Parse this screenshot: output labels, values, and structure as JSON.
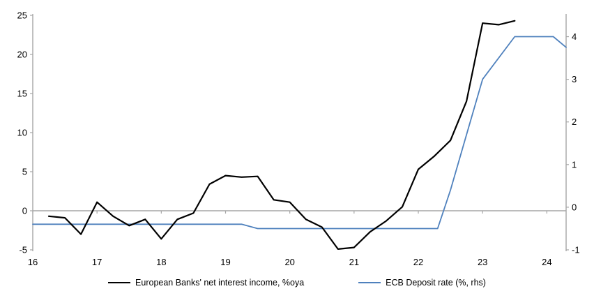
{
  "chart_data": {
    "type": "line",
    "title": "",
    "x_axis": {
      "min": 16,
      "max": 24.3,
      "ticks": [
        16,
        17,
        18,
        19,
        20,
        21,
        22,
        23,
        24
      ]
    },
    "left_axis": {
      "label": "",
      "min": -5,
      "max": 25,
      "ticks": [
        25,
        20,
        15,
        10,
        5,
        0,
        -5
      ]
    },
    "right_axis": {
      "label": "",
      "min": -1,
      "max": 4.5,
      "ticks": [
        4,
        3,
        2,
        1,
        0,
        -1
      ]
    },
    "grid": "zero-line-only",
    "legend_position": "bottom",
    "colors": {
      "axis_gray": "#a6a6a6",
      "zero_line": "#a6a6a6",
      "text": "#000000"
    },
    "series": [
      {
        "name": "European Banks' net interest income, %oya",
        "axis": "left",
        "color": "#000000",
        "width": 2.2,
        "points": [
          [
            16.25,
            -0.7
          ],
          [
            16.5,
            -0.9
          ],
          [
            16.75,
            -3.0
          ],
          [
            17.0,
            1.1
          ],
          [
            17.25,
            -0.7
          ],
          [
            17.5,
            -1.9
          ],
          [
            17.75,
            -1.1
          ],
          [
            18.0,
            -3.6
          ],
          [
            18.25,
            -1.1
          ],
          [
            18.5,
            -0.3
          ],
          [
            18.75,
            3.4
          ],
          [
            19.0,
            4.5
          ],
          [
            19.25,
            4.3
          ],
          [
            19.5,
            4.4
          ],
          [
            19.75,
            1.4
          ],
          [
            20.0,
            1.1
          ],
          [
            20.25,
            -1.1
          ],
          [
            20.5,
            -2.1
          ],
          [
            20.75,
            -4.9
          ],
          [
            21.0,
            -4.7
          ],
          [
            21.25,
            -2.7
          ],
          [
            21.5,
            -1.3
          ],
          [
            21.75,
            0.5
          ],
          [
            22.0,
            5.3
          ],
          [
            22.25,
            7.0
          ],
          [
            22.5,
            9.0
          ],
          [
            22.75,
            14.0
          ],
          [
            23.0,
            24.0
          ],
          [
            23.25,
            23.8
          ],
          [
            23.5,
            24.3
          ]
        ]
      },
      {
        "name": "ECB Deposit rate (%, rhs)",
        "axis": "right",
        "color": "#4f81bd",
        "width": 1.8,
        "points": [
          [
            16.0,
            -0.4
          ],
          [
            19.25,
            -0.4
          ],
          [
            19.5,
            -0.5
          ],
          [
            22.3,
            -0.5
          ],
          [
            22.5,
            0.4
          ],
          [
            22.75,
            1.7
          ],
          [
            23.0,
            3.0
          ],
          [
            23.5,
            4.0
          ],
          [
            24.1,
            4.0
          ],
          [
            24.3,
            3.75
          ]
        ]
      }
    ]
  }
}
